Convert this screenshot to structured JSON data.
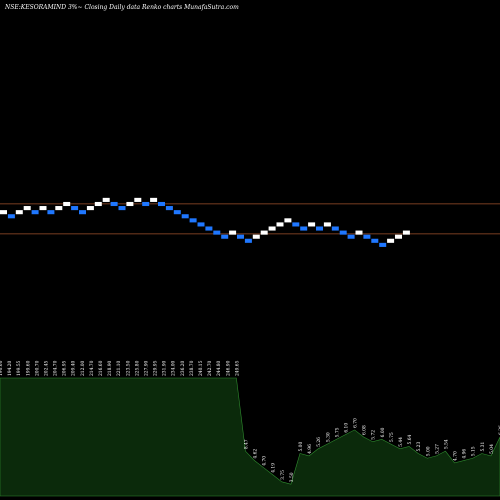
{
  "chart_data": {
    "type": "renko",
    "title": "NSE:KESORAMIND 3%~  Closing Daily data  Renko  charts MunafaSutra.com",
    "up_color": "#ffffff",
    "down_color": "#1f77ff",
    "reference_line_color": "#a0522d",
    "volume_fill_color": "#0b2a0b",
    "volume_line_color": "#2e8b2e",
    "reference_levels": [
      224.0,
      177.0
    ],
    "bricks": [
      {
        "dir": "up",
        "value": 211.0
      },
      {
        "dir": "down",
        "value": 204.6
      },
      {
        "dir": "up",
        "value": 211.0
      },
      {
        "dir": "up",
        "value": 217.4
      },
      {
        "dir": "down",
        "value": 211.0
      },
      {
        "dir": "up",
        "value": 217.4
      },
      {
        "dir": "down",
        "value": 211.0
      },
      {
        "dir": "up",
        "value": 217.4
      },
      {
        "dir": "up",
        "value": 223.8
      },
      {
        "dir": "down",
        "value": 217.4
      },
      {
        "dir": "down",
        "value": 211.0
      },
      {
        "dir": "up",
        "value": 217.4
      },
      {
        "dir": "up",
        "value": 223.8
      },
      {
        "dir": "up",
        "value": 230.2
      },
      {
        "dir": "down",
        "value": 223.8
      },
      {
        "dir": "down",
        "value": 217.4
      },
      {
        "dir": "up",
        "value": 223.8
      },
      {
        "dir": "up",
        "value": 230.2
      },
      {
        "dir": "down",
        "value": 223.8
      },
      {
        "dir": "up",
        "value": 230.2
      },
      {
        "dir": "down",
        "value": 223.8
      },
      {
        "dir": "down",
        "value": 217.4
      },
      {
        "dir": "down",
        "value": 211.0
      },
      {
        "dir": "down",
        "value": 204.6
      },
      {
        "dir": "down",
        "value": 198.2
      },
      {
        "dir": "down",
        "value": 191.8
      },
      {
        "dir": "down",
        "value": 185.4
      },
      {
        "dir": "down",
        "value": 179.0
      },
      {
        "dir": "down",
        "value": 172.6
      },
      {
        "dir": "up",
        "value": 179.0
      },
      {
        "dir": "down",
        "value": 172.6
      },
      {
        "dir": "down",
        "value": 166.2
      },
      {
        "dir": "up",
        "value": 172.6
      },
      {
        "dir": "up",
        "value": 179.0
      },
      {
        "dir": "up",
        "value": 185.4
      },
      {
        "dir": "up",
        "value": 191.8
      },
      {
        "dir": "up",
        "value": 198.2
      },
      {
        "dir": "down",
        "value": 191.8
      },
      {
        "dir": "down",
        "value": 185.4
      },
      {
        "dir": "up",
        "value": 191.8
      },
      {
        "dir": "down",
        "value": 185.4
      },
      {
        "dir": "up",
        "value": 191.8
      },
      {
        "dir": "down",
        "value": 185.4
      },
      {
        "dir": "down",
        "value": 179.0
      },
      {
        "dir": "down",
        "value": 172.6
      },
      {
        "dir": "up",
        "value": 179.0
      },
      {
        "dir": "down",
        "value": 172.6
      },
      {
        "dir": "down",
        "value": 166.2
      },
      {
        "dir": "down",
        "value": 159.8
      },
      {
        "dir": "up",
        "value": 166.2
      },
      {
        "dir": "up",
        "value": 172.6
      },
      {
        "dir": "up",
        "value": 179.0
      }
    ],
    "volume_labels": [
      "190.60",
      "194.20",
      "199.55",
      "199.60",
      "200.70",
      "202.45",
      "204.70",
      "206.95",
      "209.40",
      "212.00",
      "214.70",
      "216.60",
      "218.90",
      "221.10",
      "223.50",
      "225.80",
      "227.90",
      "229.95",
      "231.90",
      "234.00",
      "236.20",
      "238.70",
      "240.15",
      "242.70",
      "244.80",
      "246.90",
      "249.65",
      "8.47",
      "4.62",
      "4.70",
      "4.19",
      "3.75",
      "3.50",
      "5.00",
      "4.96",
      "5.26",
      "5.30",
      "5.75",
      "6.10",
      "6.70",
      "6.08",
      "5.72",
      "6.00",
      "5.75",
      "5.44",
      "5.64",
      "5.23",
      "5.00",
      "5.27",
      "5.54",
      "4.70",
      "4.96",
      "5.15",
      "5.31",
      "5.04",
      "6.26"
    ],
    "volume_values": [
      100,
      100,
      100,
      100,
      100,
      100,
      100,
      100,
      100,
      100,
      100,
      100,
      100,
      100,
      100,
      100,
      100,
      100,
      100,
      100,
      100,
      100,
      100,
      100,
      100,
      100,
      100,
      38,
      30,
      24,
      18,
      12,
      10,
      36,
      34,
      40,
      44,
      48,
      52,
      56,
      50,
      46,
      48,
      44,
      40,
      42,
      36,
      32,
      34,
      38,
      28,
      30,
      32,
      36,
      34,
      50
    ]
  }
}
